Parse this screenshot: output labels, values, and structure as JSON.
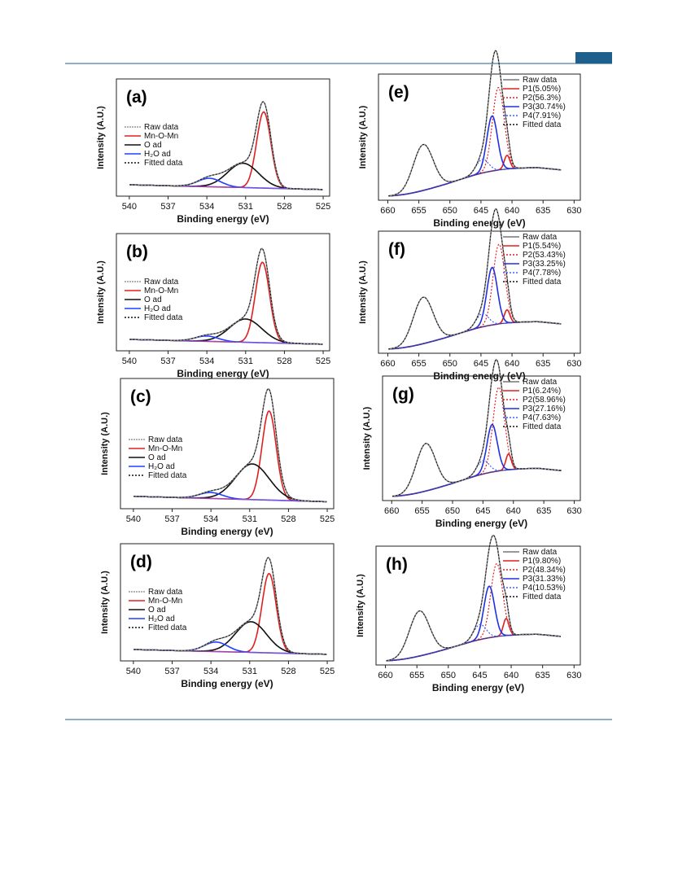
{
  "colors": {
    "rule": "#1f5f8b",
    "tab": "#1f5f8b"
  },
  "chart_data": [
    {
      "type": "line",
      "label": "(a)",
      "xlabel": "Binding energy (eV)",
      "ylabel": "Intensity (A.U.)",
      "xlim": [
        541,
        524.5
      ],
      "xticks": [
        540,
        537,
        534,
        531,
        528,
        525
      ],
      "legend": [
        "Raw data",
        "Mn-O-Mn",
        "O ad",
        "H₂O ad",
        "Fitted data"
      ],
      "legend_position": "left",
      "series": [
        {
          "name": "Mn-O-Mn",
          "color": "#e02020",
          "style": "solid",
          "center": 529.6,
          "width": 0.55,
          "amp": 0.72
        },
        {
          "name": "O ad",
          "color": "#111111",
          "style": "solid",
          "center": 531.2,
          "width": 1.2,
          "amp": 0.23
        },
        {
          "name": "H₂O ad",
          "color": "#2040ff",
          "style": "solid",
          "center": 533.8,
          "width": 0.9,
          "amp": 0.08
        }
      ]
    },
    {
      "type": "line",
      "label": "(b)",
      "xlabel": "Binding energy (eV)",
      "ylabel": "Intensity (A.U.)",
      "xlim": [
        541,
        524.5
      ],
      "xticks": [
        540,
        537,
        534,
        531,
        528,
        525
      ],
      "legend": [
        "Raw data",
        "Mn-O-Mn",
        "O ad",
        "H₂O ad",
        "Fitted data"
      ],
      "legend_position": "left",
      "series": [
        {
          "name": "Mn-O-Mn",
          "color": "#e02020",
          "style": "solid",
          "center": 529.7,
          "width": 0.55,
          "amp": 0.76
        },
        {
          "name": "O ad",
          "color": "#111111",
          "style": "solid",
          "center": 531.0,
          "width": 1.25,
          "amp": 0.22
        },
        {
          "name": "H₂O ad",
          "color": "#2040ff",
          "style": "solid",
          "center": 534.0,
          "width": 0.9,
          "amp": 0.05
        }
      ]
    },
    {
      "type": "line",
      "label": "(c)",
      "xlabel": "Binding energy (eV)",
      "ylabel": "Intensity (A.U.)",
      "xlim": [
        541,
        524.5
      ],
      "xticks": [
        540,
        537,
        534,
        531,
        528,
        525
      ],
      "legend": [
        "Raw data",
        "Mn-O-Mn",
        "O ad",
        "H₂O ad",
        "Fitted data"
      ],
      "legend_position": "left",
      "series": [
        {
          "name": "Mn-O-Mn",
          "color": "#e02020",
          "style": "solid",
          "center": 529.5,
          "width": 0.55,
          "amp": 0.75
        },
        {
          "name": "O ad",
          "color": "#111111",
          "style": "solid",
          "center": 530.8,
          "width": 1.3,
          "amp": 0.3
        },
        {
          "name": "H₂O ad",
          "color": "#2040ff",
          "style": "solid",
          "center": 534.0,
          "width": 0.9,
          "amp": 0.05
        }
      ]
    },
    {
      "type": "line",
      "label": "(d)",
      "xlabel": "Binding energy (eV)",
      "ylabel": "Intensity (A.U.)",
      "xlim": [
        541,
        524.5
      ],
      "xticks": [
        540,
        537,
        534,
        531,
        528,
        525
      ],
      "legend": [
        "Raw data",
        "Mn-O-Mn",
        "O ad",
        "H₂O ad",
        "Fitted data"
      ],
      "legend_position": "left",
      "series": [
        {
          "name": "Mn-O-Mn",
          "color": "#e02020",
          "style": "solid",
          "center": 529.5,
          "width": 0.55,
          "amp": 0.75
        },
        {
          "name": "O ad",
          "color": "#111111",
          "style": "solid",
          "center": 530.9,
          "width": 1.2,
          "amp": 0.29
        },
        {
          "name": "H₂O ad",
          "color": "#2040ff",
          "style": "solid",
          "center": 533.6,
          "width": 0.9,
          "amp": 0.09
        }
      ]
    },
    {
      "type": "line",
      "label": "(e)",
      "xlabel": "Binding energy (eV)",
      "ylabel": "Intensity (A.U.)",
      "xlim": [
        661.5,
        629
      ],
      "xticks": [
        660,
        655,
        650,
        645,
        640,
        635,
        630
      ],
      "legend": [
        "Raw data",
        "P1(5.05%)",
        "P2(56.3%)",
        "P3(30.74%)",
        "P4(7.91%)",
        "Fitted data"
      ],
      "legend_position": "top-right",
      "series": [
        {
          "name": "P1(5.05%)",
          "color": "#e02020",
          "style": "solid",
          "center": 640.8,
          "width": 0.45,
          "amp": 0.12
        },
        {
          "name": "P2(56.3%)",
          "color": "#e02020",
          "style": "dotted",
          "center": 642.2,
          "width": 0.95,
          "amp": 0.72
        },
        {
          "name": "P3(30.74%)",
          "color": "#2030e0",
          "style": "solid",
          "center": 643.2,
          "width": 0.85,
          "amp": 0.48
        },
        {
          "name": "P4(7.91%)",
          "color": "#4060ff",
          "style": "dotted",
          "center": 644.8,
          "width": 1.0,
          "amp": 0.12
        }
      ],
      "satellite": {
        "center": 654.3,
        "width": 1.6,
        "amp": 0.4
      }
    },
    {
      "type": "line",
      "label": "(f)",
      "xlabel": "Binding energy (eV)",
      "ylabel": "Intensity (A.U.)",
      "xlim": [
        661.5,
        629
      ],
      "xticks": [
        660,
        655,
        650,
        645,
        640,
        635,
        630
      ],
      "legend": [
        "Raw data",
        "P1(5.54%)",
        "P2(53.43%)",
        "P3(33.25%)",
        "P4(7.78%)",
        "Fitted data"
      ],
      "legend_position": "top-right",
      "series": [
        {
          "name": "P1(5.54%)",
          "color": "#e02020",
          "style": "solid",
          "center": 640.8,
          "width": 0.45,
          "amp": 0.12
        },
        {
          "name": "P2(53.43%)",
          "color": "#e02020",
          "style": "dotted",
          "center": 642.1,
          "width": 0.95,
          "amp": 0.72
        },
        {
          "name": "P3(33.25%)",
          "color": "#2030e0",
          "style": "solid",
          "center": 643.2,
          "width": 0.85,
          "amp": 0.52
        },
        {
          "name": "P4(7.78%)",
          "color": "#4060ff",
          "style": "dotted",
          "center": 644.8,
          "width": 1.0,
          "amp": 0.12
        }
      ],
      "satellite": {
        "center": 654.3,
        "width": 1.6,
        "amp": 0.42
      }
    },
    {
      "type": "line",
      "label": "(g)",
      "xlabel": "Binding energy (eV)",
      "ylabel": "Intensity (A.U.)",
      "xlim": [
        661.5,
        629
      ],
      "xticks": [
        660,
        655,
        650,
        645,
        640,
        635,
        630
      ],
      "legend": [
        "Raw data",
        "P1(6.24%)",
        "P2(58.96%)",
        "P3(27.16%)",
        "P4(7.63%)",
        "Fitted data"
      ],
      "legend_position": "top-right",
      "series": [
        {
          "name": "P1(6.24%)",
          "color": "#e02020",
          "style": "solid",
          "center": 640.8,
          "width": 0.45,
          "amp": 0.14
        },
        {
          "name": "P2(58.96%)",
          "color": "#e02020",
          "style": "dotted",
          "center": 642.4,
          "width": 0.95,
          "amp": 0.74
        },
        {
          "name": "P3(27.16%)",
          "color": "#2030e0",
          "style": "solid",
          "center": 643.5,
          "width": 0.85,
          "amp": 0.42
        },
        {
          "name": "P4(7.63%)",
          "color": "#4060ff",
          "style": "dotted",
          "center": 645.0,
          "width": 1.0,
          "amp": 0.12
        }
      ],
      "satellite": {
        "center": 654.4,
        "width": 1.6,
        "amp": 0.42
      }
    },
    {
      "type": "line",
      "label": "(h)",
      "xlabel": "Binding energy (eV)",
      "ylabel": "Intensity (A.U.)",
      "xlim": [
        661.5,
        629
      ],
      "xticks": [
        660,
        655,
        650,
        645,
        640,
        635,
        630
      ],
      "legend": [
        "Raw data",
        "P1(9.80%)",
        "P2(48.34%)",
        "P3(31.33%)",
        "P4(10.53%)",
        "Fitted data"
      ],
      "legend_position": "top-right",
      "series": [
        {
          "name": "P1(9.80%)",
          "color": "#e02020",
          "style": "solid",
          "center": 640.8,
          "width": 0.45,
          "amp": 0.16
        },
        {
          "name": "P2(48.34%)",
          "color": "#e02020",
          "style": "dotted",
          "center": 642.3,
          "width": 0.95,
          "amp": 0.68
        },
        {
          "name": "P3(31.33%)",
          "color": "#2030e0",
          "style": "solid",
          "center": 643.5,
          "width": 0.85,
          "amp": 0.48
        },
        {
          "name": "P4(10.53%)",
          "color": "#4060ff",
          "style": "dotted",
          "center": 645.0,
          "width": 1.0,
          "amp": 0.14
        }
      ],
      "satellite": {
        "center": 654.6,
        "width": 1.6,
        "amp": 0.42
      }
    }
  ]
}
